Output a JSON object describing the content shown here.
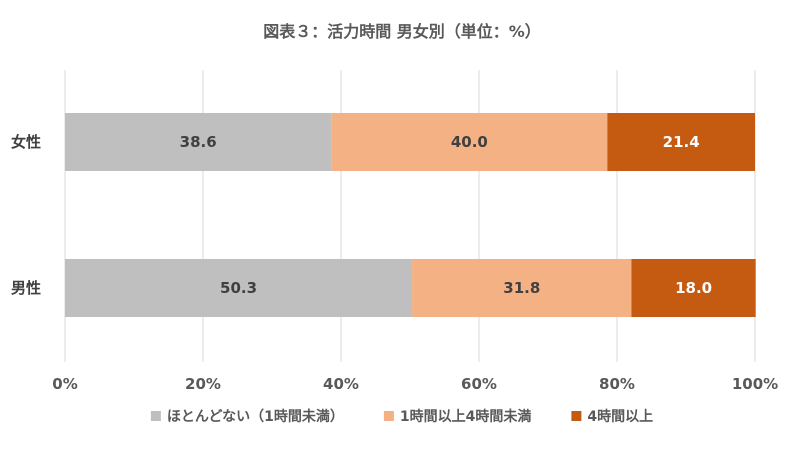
{
  "chart_data": {
    "type": "bar",
    "orientation": "horizontal",
    "stacked": true,
    "title": "図表３：活力時間 男女別（単位：%）",
    "categories": [
      "女性",
      "男性"
    ],
    "series": [
      {
        "name": "ほとんどない（1時間未満）",
        "values": [
          38.6,
          50.3
        ],
        "color": "#bfbfbf",
        "label_color": "#404040"
      },
      {
        "name": "1時間以上4時間未満",
        "values": [
          40.0,
          31.8
        ],
        "color": "#f4b183",
        "label_color": "#404040"
      },
      {
        "name": "4時間以上",
        "values": [
          21.4,
          18.0
        ],
        "color": "#c55a11",
        "label_color": "#ffffff"
      }
    ],
    "xlim": [
      0,
      100
    ],
    "xticks": [
      0,
      20,
      40,
      60,
      80,
      100
    ],
    "xtick_labels": [
      "0%",
      "20%",
      "40%",
      "60%",
      "80%",
      "100%"
    ],
    "grid": true,
    "legend_position": "bottom"
  }
}
